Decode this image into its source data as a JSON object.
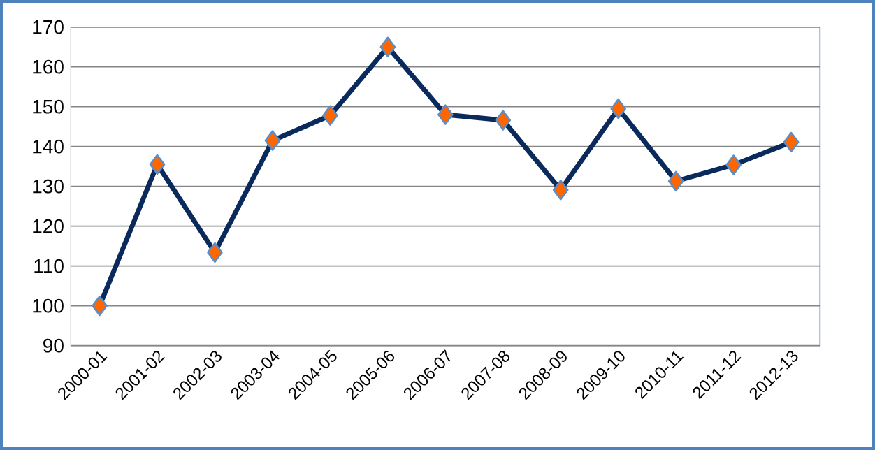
{
  "chart_data": {
    "type": "line",
    "categories": [
      "2000-01",
      "2001-02",
      "2002-03",
      "2003-04",
      "2004-05",
      "2005-06",
      "2006-07",
      "2007-08",
      "2008-09",
      "2009-10",
      "2010-11",
      "2011-12",
      "2012-13"
    ],
    "series": [
      {
        "color": "#0a2a5c",
        "values": [
          100,
          135.5,
          113.4,
          141.5,
          147.8,
          165,
          148,
          146.6,
          129.1,
          149.5,
          131.3,
          135.4,
          141.1
        ]
      }
    ],
    "ylim": [
      90,
      170
    ],
    "yticks": [
      90,
      100,
      110,
      120,
      130,
      140,
      150,
      160,
      170
    ],
    "grid": "y",
    "marker": "diamond",
    "line_style": "solid"
  }
}
